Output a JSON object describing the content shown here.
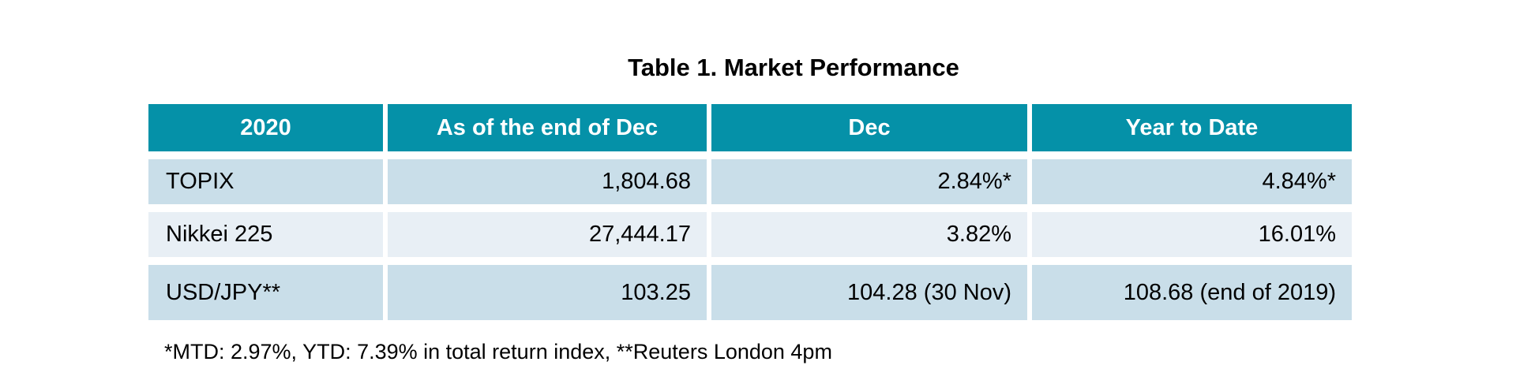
{
  "title": "Table 1. Market Performance",
  "table": {
    "headers": [
      "2020",
      "As of the end of Dec",
      "Dec",
      "Year to Date"
    ],
    "rows": [
      {
        "label": "TOPIX",
        "values": [
          "1,804.68",
          "2.84%*",
          "4.84%*"
        ]
      },
      {
        "label": "Nikkei 225",
        "values": [
          "27,444.17",
          "3.82%",
          "16.01%"
        ]
      },
      {
        "label": "USD/JPY**",
        "values": [
          "103.25",
          "104.28 (30 Nov)",
          "108.68 (end of 2019)"
        ]
      }
    ]
  },
  "footnote": "*MTD: 2.97%, YTD: 7.39% in total return index, **Reuters London 4pm",
  "colors": {
    "header_bg": "#0591A8",
    "header_text": "#FFFFFF",
    "row_odd_bg": "#C9DEE9",
    "row_even_bg": "#E8EFF5",
    "body_text": "#000000",
    "page_bg": "#FFFFFF"
  }
}
